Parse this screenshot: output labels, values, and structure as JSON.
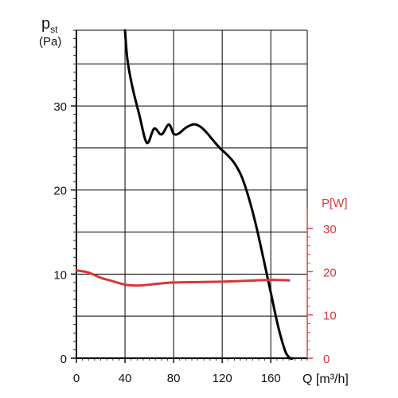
{
  "chart_data": {
    "type": "line",
    "title": "",
    "x_axis": {
      "label": "Q [m³/h]",
      "range": [
        0,
        190
      ],
      "ticks": [
        0,
        40,
        80,
        120,
        160
      ],
      "tick_labels": [
        "0",
        "40",
        "80",
        "120",
        "160"
      ],
      "grid_lines": [
        0,
        40,
        80,
        120,
        160,
        190
      ]
    },
    "y_axis_left": {
      "label_main": "p",
      "label_sub": "st",
      "unit": "(Pa)",
      "range": [
        0,
        39
      ],
      "ticks": [
        0,
        10,
        20,
        30
      ],
      "tick_labels": [
        "0",
        "10",
        "20",
        "30"
      ],
      "grid_lines": [
        0,
        5,
        10,
        15,
        20,
        25,
        30,
        35,
        39
      ]
    },
    "y_axis_right": {
      "label": "P[W]",
      "range": [
        0,
        30
      ],
      "ticks": [
        0,
        10,
        20,
        30
      ],
      "tick_labels": [
        "0",
        "10",
        "20",
        "30"
      ]
    },
    "grid": true,
    "colors": {
      "pressure": "#000000",
      "power": "#d93636",
      "grid": "#000000"
    },
    "series": [
      {
        "axis": "left",
        "x": [
          40,
          42,
          46,
          52,
          58,
          64,
          70,
          76,
          80,
          84,
          90,
          96,
          100,
          104,
          108,
          112,
          118,
          124,
          130,
          136,
          142,
          148,
          154,
          160,
          166,
          172,
          176,
          178
        ],
        "y": [
          39,
          35.5,
          32.3,
          28.8,
          25.6,
          27.3,
          26.6,
          27.8,
          26.7,
          26.7,
          27.4,
          27.8,
          27.7,
          27.3,
          26.7,
          26.0,
          25.0,
          24.2,
          23.2,
          21.6,
          19.0,
          15.7,
          11.8,
          7.8,
          3.8,
          0.8,
          0,
          0
        ]
      },
      {
        "axis": "right",
        "x": [
          0,
          10,
          20,
          30,
          40,
          50,
          60,
          70,
          80,
          100,
          120,
          140,
          160,
          175
        ],
        "y": [
          20.3,
          19.8,
          18.6,
          17.8,
          17.0,
          16.8,
          17.0,
          17.3,
          17.5,
          17.6,
          17.7,
          17.9,
          18.1,
          18.0
        ]
      }
    ]
  }
}
